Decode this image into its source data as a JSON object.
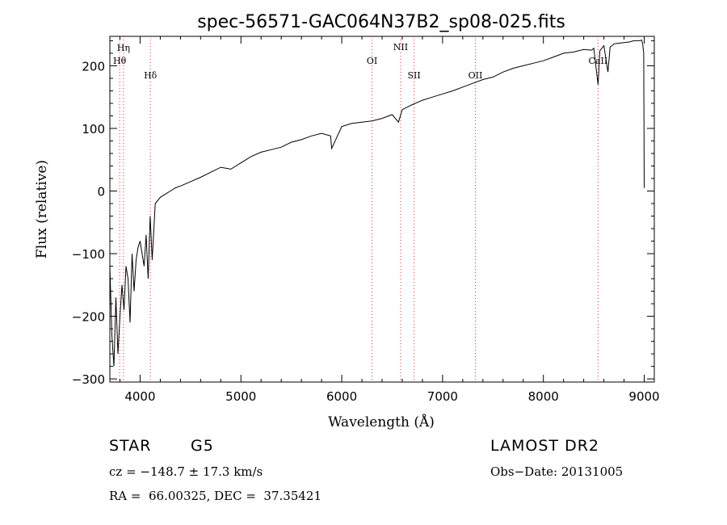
{
  "chart_data": {
    "type": "line",
    "title": "spec-56571-GAC064N37B2_sp08-025.fits",
    "xlabel": "Wavelength (Å)",
    "ylabel": "Flux (relative)",
    "xlim": [
      3700,
      9100
    ],
    "ylim": [
      -305,
      247
    ],
    "xticks": [
      4000,
      5000,
      6000,
      7000,
      8000,
      9000
    ],
    "xtick_labels": [
      "4000",
      "5000",
      "6000",
      "7000",
      "8000",
      "9000"
    ],
    "yticks": [
      -300,
      -200,
      -100,
      0,
      100,
      200
    ],
    "ytick_labels": [
      "−300",
      "−200",
      "−100",
      "0",
      "100",
      "200"
    ],
    "grid": false,
    "series": [
      {
        "x": [
          3700,
          3720,
          3740,
          3760,
          3780,
          3800,
          3820,
          3840,
          3860,
          3880,
          3900,
          3920,
          3940,
          3960,
          3980,
          4000,
          4020,
          4040,
          4060,
          4080,
          4100,
          4120,
          4150,
          4200,
          4250,
          4300,
          4350,
          4400,
          4500,
          4600,
          4700,
          4800,
          4900,
          5000,
          5100,
          5200,
          5300,
          5400,
          5500,
          5600,
          5700,
          5800,
          5890,
          5900,
          6000,
          6100,
          6200,
          6300,
          6400,
          6500,
          6563,
          6600,
          6700,
          6800,
          6900,
          7000,
          7100,
          7200,
          7300,
          7400,
          7500,
          7600,
          7700,
          7800,
          7900,
          8000,
          8100,
          8200,
          8300,
          8400,
          8480,
          8500,
          8520,
          8542,
          8560,
          8600,
          8640,
          8662,
          8680,
          8700,
          8750,
          8800,
          8850,
          8900,
          8950,
          8975,
          8985,
          8995,
          9000
        ],
        "y": [
          -120,
          -230,
          -280,
          -170,
          -260,
          -200,
          -150,
          -190,
          -120,
          -140,
          -210,
          -100,
          -160,
          -110,
          -90,
          -80,
          -100,
          -120,
          -70,
          -140,
          -40,
          -110,
          -20,
          -10,
          -5,
          0,
          5,
          8,
          15,
          22,
          30,
          38,
          35,
          45,
          55,
          62,
          66,
          70,
          78,
          82,
          88,
          92,
          88,
          68,
          103,
          108,
          110,
          112,
          116,
          122,
          110,
          130,
          138,
          145,
          150,
          155,
          160,
          166,
          172,
          178,
          182,
          190,
          196,
          200,
          204,
          208,
          214,
          220,
          222,
          226,
          225,
          228,
          200,
          170,
          224,
          232,
          190,
          230,
          232,
          235,
          236,
          237,
          238,
          240,
          240,
          241,
          235,
          220,
          5
        ]
      }
    ],
    "lines": [
      {
        "label": "Hη",
        "x": 3835
      },
      {
        "label": "Hθ",
        "x": 3797
      },
      {
        "label": "Hδ",
        "x": 4102
      },
      {
        "label": "OI",
        "x": 6300
      },
      {
        "label": "NII",
        "x": 6584
      },
      {
        "label": "SII",
        "x": 6717
      },
      {
        "label": "OII",
        "x": 7325
      },
      {
        "label": "CaII",
        "x": 8542
      }
    ],
    "line_color": "#e03030"
  },
  "info": {
    "class_label": "STAR",
    "subclass": "G5",
    "cz": "cz = −148.7 ± 17.3 km/s",
    "coords": "RA =  66.00325, DEC =  37.35421",
    "survey": "LAMOST DR2",
    "obs_date": "Obs−Date: 20131005"
  }
}
